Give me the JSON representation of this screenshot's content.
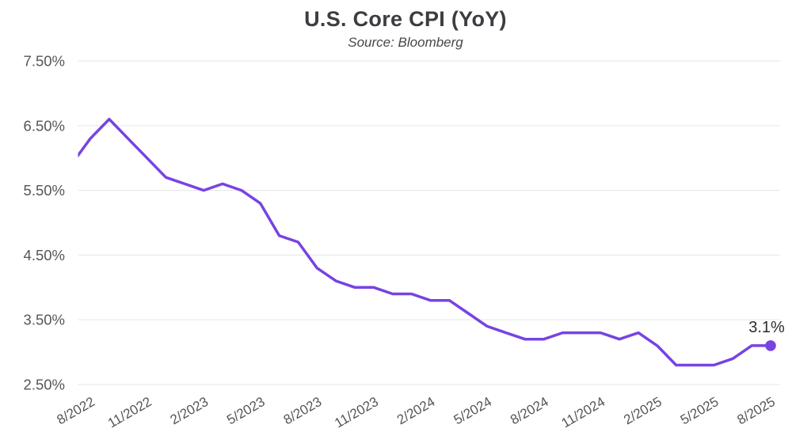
{
  "chart_data": {
    "type": "line",
    "title": "U.S. Core CPI (YoY)",
    "subtitle": "Source: Bloomberg",
    "xlabel": "",
    "ylabel": "",
    "ylim": [
      2.5,
      7.5
    ],
    "y_tick_labels": [
      "7.50%",
      "6.50%",
      "5.50%",
      "4.50%",
      "3.50%",
      "2.50%"
    ],
    "x_tick_labels": [
      "8/2022",
      "11/2022",
      "2/2023",
      "5/2023",
      "8/2023",
      "11/2023",
      "2/2024",
      "5/2024",
      "8/2024",
      "11/2024",
      "2/2025",
      "5/2025",
      "8/2025"
    ],
    "grid": "horizontal",
    "legend": "none",
    "end_label": "3.1%",
    "series": [
      {
        "name": "U.S. Core CPI YoY",
        "months": [
          "7/2022",
          "8/2022",
          "9/2022",
          "10/2022",
          "11/2022",
          "12/2022",
          "1/2023",
          "2/2023",
          "3/2023",
          "4/2023",
          "5/2023",
          "6/2023",
          "7/2023",
          "8/2023",
          "9/2023",
          "10/2023",
          "11/2023",
          "12/2023",
          "1/2024",
          "2/2024",
          "3/2024",
          "4/2024",
          "5/2024",
          "6/2024",
          "7/2024",
          "8/2024",
          "9/2024",
          "10/2024",
          "11/2024",
          "12/2024",
          "1/2025",
          "2/2025",
          "3/2025",
          "4/2025",
          "5/2025",
          "6/2025",
          "7/2025",
          "8/2025"
        ],
        "values": [
          5.9,
          6.3,
          6.6,
          6.3,
          6.0,
          5.7,
          5.6,
          5.5,
          5.6,
          5.5,
          5.3,
          4.8,
          4.7,
          4.3,
          4.1,
          4.0,
          4.0,
          3.9,
          3.9,
          3.8,
          3.8,
          3.6,
          3.4,
          3.3,
          3.2,
          3.2,
          3.3,
          3.3,
          3.3,
          3.2,
          3.3,
          3.1,
          2.8,
          2.8,
          2.8,
          2.9,
          3.1,
          3.1
        ]
      }
    ],
    "colors": {
      "line": "#7743E2",
      "marker": "#7743E2",
      "grid": "#eaeaea",
      "title": "#3c3c41",
      "subtitle": "#47474c",
      "axis_labels": "#56565b",
      "end_label": "#2c2c31",
      "background": "#ffffff"
    }
  }
}
